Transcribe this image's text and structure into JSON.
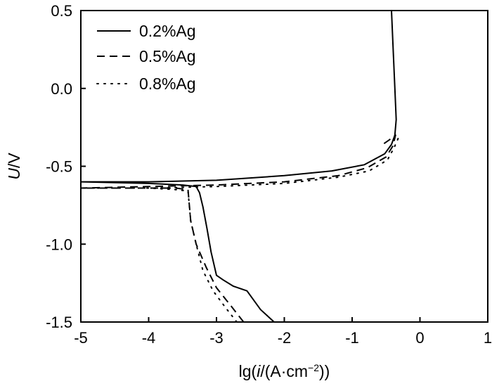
{
  "chart_data": {
    "type": "line",
    "xlabel": {
      "pre": "lg(",
      "italic": "i",
      "post": "/(A·cm",
      "sup": "−2",
      "end": "))"
    },
    "ylabel": {
      "italic": "U",
      "post": "/V"
    },
    "xlim": [
      -5,
      1
    ],
    "ylim": [
      -1.5,
      0.5
    ],
    "xticks": [
      -5,
      -4,
      -3,
      -2,
      -1,
      0,
      1
    ],
    "xtick_labels": [
      "-5",
      "-4",
      "-3",
      "-2",
      "-1",
      "0",
      "1"
    ],
    "yticks": [
      -1.5,
      -1.0,
      -0.5,
      0.0,
      0.5
    ],
    "ytick_labels": [
      "-1.5",
      "-1.0",
      "-0.5",
      "0.0",
      "0.5"
    ],
    "grid": false,
    "legend_position": "top-left",
    "series": [
      {
        "name": "0.2%Ag",
        "dash": "solid",
        "x": [
          -2.15,
          -2.35,
          -2.55,
          -2.75,
          -2.9,
          -3.0,
          -3.08,
          -3.14,
          -3.2,
          -3.25,
          -3.3,
          -3.5,
          -4.0,
          -5.0,
          -4.0,
          -3.0,
          -2.0,
          -1.3,
          -0.82,
          -0.52,
          -0.42,
          -0.37,
          -0.35,
          -0.37,
          -0.4,
          -0.42
        ],
        "y": [
          -1.5,
          -1.42,
          -1.3,
          -1.27,
          -1.23,
          -1.2,
          -1.05,
          -0.9,
          -0.76,
          -0.67,
          -0.63,
          -0.62,
          -0.61,
          -0.6,
          -0.6,
          -0.59,
          -0.56,
          -0.53,
          -0.49,
          -0.42,
          -0.36,
          -0.3,
          -0.2,
          0.0,
          0.3,
          0.5
        ]
      },
      {
        "name": "0.5%Ag",
        "dash": "dashed",
        "x": [
          -2.6,
          -2.78,
          -3.0,
          -3.15,
          -3.3,
          -3.38,
          -3.42,
          -3.6,
          -4.0,
          -5.0,
          -4.0,
          -3.0,
          -2.0,
          -1.2,
          -0.78,
          -0.5,
          -0.4,
          -0.36,
          -0.45,
          -0.55
        ],
        "y": [
          -1.5,
          -1.4,
          -1.28,
          -1.15,
          -1.0,
          -0.85,
          -0.65,
          -0.64,
          -0.64,
          -0.64,
          -0.63,
          -0.62,
          -0.6,
          -0.56,
          -0.51,
          -0.44,
          -0.37,
          -0.3,
          -0.33,
          -0.36
        ]
      },
      {
        "name": "0.8%Ag",
        "dash": "dotted",
        "x": [
          -2.7,
          -2.88,
          -3.05,
          -3.2,
          -3.3,
          -3.38,
          -3.42,
          -3.6,
          -4.0,
          -5.0,
          -4.0,
          -3.0,
          -2.0,
          -1.2,
          -0.75,
          -0.48,
          -0.38,
          -0.32
        ],
        "y": [
          -1.5,
          -1.4,
          -1.3,
          -1.17,
          -1.0,
          -0.85,
          -0.66,
          -0.65,
          -0.64,
          -0.64,
          -0.64,
          -0.63,
          -0.61,
          -0.57,
          -0.53,
          -0.46,
          -0.38,
          -0.32
        ]
      }
    ]
  }
}
